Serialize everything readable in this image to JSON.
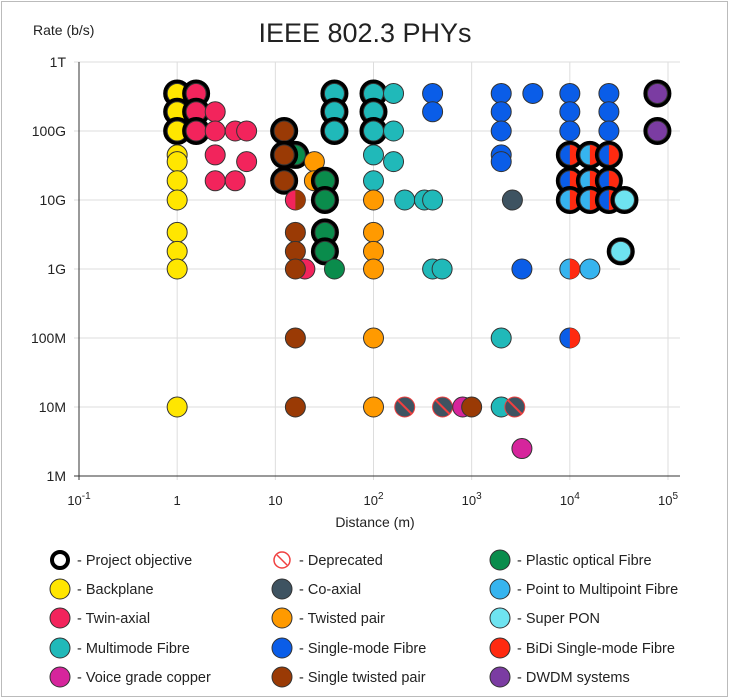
{
  "chart_data": {
    "type": "scatter",
    "title": "IEEE 802.3 PHYs",
    "xlabel": "Distance (m)",
    "ylabel": "Rate (b/s)",
    "xscale": "log",
    "yscale": "log",
    "xlim": [
      0.1,
      100000
    ],
    "ylim": [
      1000000,
      1000000000000
    ],
    "grid": true,
    "x_ticks": [
      {
        "value": 0.1,
        "base": "10",
        "exp": "-1"
      },
      {
        "value": 1,
        "base": "1",
        "exp": ""
      },
      {
        "value": 10,
        "base": "10",
        "exp": ""
      },
      {
        "value": 100,
        "base": "10",
        "exp": "2"
      },
      {
        "value": 1000,
        "base": "10",
        "exp": "3"
      },
      {
        "value": 10000,
        "base": "10",
        "exp": "4"
      },
      {
        "value": 100000,
        "base": "10",
        "exp": "5"
      }
    ],
    "y_ticks": [
      {
        "value": 1000000000000.0,
        "label": "1T"
      },
      {
        "value": 100000000000.0,
        "label": "100G"
      },
      {
        "value": 10000000000.0,
        "label": "10G"
      },
      {
        "value": 1000000000.0,
        "label": "1G"
      },
      {
        "value": 100000000.0,
        "label": "100M"
      },
      {
        "value": 10000000.0,
        "label": "10M"
      },
      {
        "value": 1000000.0,
        "label": "1M"
      }
    ],
    "legend_placement": "bottom",
    "legend": [
      {
        "key": "objective",
        "label": "- Project objective"
      },
      {
        "key": "backplane",
        "label": " - Backplane"
      },
      {
        "key": "twinax",
        "label": "- Twin-axial"
      },
      {
        "key": "mmf",
        "label": "- Multimode Fibre"
      },
      {
        "key": "voice",
        "label": "- Voice grade copper"
      },
      {
        "key": "deprecated",
        "label": "- Deprecated"
      },
      {
        "key": "coax",
        "label": "- Co-axial"
      },
      {
        "key": "tp",
        "label": "- Twisted pair"
      },
      {
        "key": "smf",
        "label": "- Single-mode Fibre"
      },
      {
        "key": "stp",
        "label": "- Single twisted pair"
      },
      {
        "key": "pof",
        "label": "- Plastic optical Fibre"
      },
      {
        "key": "p2mp",
        "label": "- Point to Multipoint Fibre"
      },
      {
        "key": "superpon",
        "label": "- Super PON"
      },
      {
        "key": "bidi",
        "label": "- BiDi Single-mode Fibre"
      },
      {
        "key": "dwdm",
        "label": "- DWDM systems"
      }
    ],
    "colors": {
      "backplane": "#ffe600",
      "twinax": "#f2245c",
      "mmf": "#20b9b9",
      "voice": "#d6259c",
      "coax": "#3e5361",
      "tp": "#ff9a00",
      "smf": "#0a5de8",
      "stp": "#9a3a05",
      "pof": "#0a8c4c",
      "p2mp": "#36b4ef",
      "superpon": "#6ee3f0",
      "bidi": "#ff2a10",
      "dwdm": "#7b3ca2"
    },
    "points": [
      {
        "d": 1,
        "r": 350000000000.0,
        "t": "backplane",
        "obj": true
      },
      {
        "d": 1,
        "r": 190000000000.0,
        "t": "backplane",
        "obj": true
      },
      {
        "d": 1,
        "r": 100000000000.0,
        "t": "backplane",
        "obj": true
      },
      {
        "d": 1,
        "r": 45000000000.0,
        "t": "backplane"
      },
      {
        "d": 1,
        "r": 36000000000.0,
        "t": "backplane"
      },
      {
        "d": 1,
        "r": 19000000000.0,
        "t": "backplane"
      },
      {
        "d": 1,
        "r": 10000000000.0,
        "t": "backplane"
      },
      {
        "d": 1,
        "r": 3400000000.0,
        "t": "backplane"
      },
      {
        "d": 1,
        "r": 1800000000.0,
        "t": "backplane"
      },
      {
        "d": 1,
        "r": 1000000000.0,
        "t": "backplane"
      },
      {
        "d": 1,
        "r": 10000000.0,
        "t": "backplane"
      },
      {
        "d": 1.56,
        "r": 350000000000.0,
        "t": "twinax",
        "obj": true
      },
      {
        "d": 1.56,
        "r": 190000000000.0,
        "t": "twinax",
        "obj": true
      },
      {
        "d": 1.56,
        "r": 100000000000.0,
        "t": "twinax",
        "obj": true
      },
      {
        "d": 2.44,
        "r": 190000000000.0,
        "t": "twinax"
      },
      {
        "d": 2.44,
        "r": 100000000000.0,
        "t": "twinax"
      },
      {
        "d": 2.44,
        "r": 45000000000.0,
        "t": "twinax"
      },
      {
        "d": 2.44,
        "r": 19000000000.0,
        "t": "twinax"
      },
      {
        "d": 3.9,
        "r": 100000000000.0,
        "t": "twinax"
      },
      {
        "d": 3.9,
        "r": 19000000000.0,
        "t": "twinax"
      },
      {
        "d": 5.1,
        "r": 100000000000.0,
        "t": "twinax"
      },
      {
        "d": 5.1,
        "r": 36000000000.0,
        "t": "twinax"
      },
      {
        "d": 20,
        "r": 1000000000.0,
        "t": "twinax"
      },
      {
        "d": 16,
        "r": 45000000000.0,
        "t": "pof",
        "obj": true
      },
      {
        "d": 12.3,
        "r": 100000000000.0,
        "t": "stp",
        "obj": true
      },
      {
        "d": 12.3,
        "r": 45000000000.0,
        "t": "stp",
        "obj": true
      },
      {
        "d": 12.3,
        "r": 19000000000.0,
        "t": "stp",
        "obj": true
      },
      {
        "d": 16,
        "r": 10000000000.0,
        "t": "twinax",
        "t2": "stp"
      },
      {
        "d": 16,
        "r": 3400000000.0,
        "t": "stp"
      },
      {
        "d": 16,
        "r": 1800000000.0,
        "t": "stp"
      },
      {
        "d": 16,
        "r": 1000000000.0,
        "t": "stp"
      },
      {
        "d": 16,
        "r": 100000000.0,
        "t": "stp"
      },
      {
        "d": 16,
        "r": 10000000.0,
        "t": "stp"
      },
      {
        "d": 25,
        "r": 36000000000.0,
        "t": "tp"
      },
      {
        "d": 25,
        "r": 19000000000.0,
        "t": "tp"
      },
      {
        "d": 32,
        "r": 19000000000.0,
        "t": "pof",
        "obj": true
      },
      {
        "d": 32,
        "r": 10000000000.0,
        "t": "pof",
        "obj": true
      },
      {
        "d": 32,
        "r": 3400000000.0,
        "t": "pof",
        "obj": true
      },
      {
        "d": 32,
        "r": 1800000000.0,
        "t": "pof",
        "obj": true
      },
      {
        "d": 40,
        "r": 1000000000.0,
        "t": "pof"
      },
      {
        "d": 40,
        "r": 350000000000.0,
        "t": "mmf",
        "obj": true
      },
      {
        "d": 40,
        "r": 190000000000.0,
        "t": "mmf",
        "obj": true
      },
      {
        "d": 40,
        "r": 100000000000.0,
        "t": "mmf",
        "obj": true
      },
      {
        "d": 100,
        "r": 350000000000.0,
        "t": "mmf",
        "obj": true
      },
      {
        "d": 100,
        "r": 190000000000.0,
        "t": "mmf",
        "obj": true
      },
      {
        "d": 100,
        "r": 100000000000.0,
        "t": "mmf",
        "obj": true
      },
      {
        "d": 100,
        "r": 45000000000.0,
        "t": "mmf"
      },
      {
        "d": 100,
        "r": 19000000000.0,
        "t": "mmf"
      },
      {
        "d": 100,
        "r": 10000000000.0,
        "t": "tp"
      },
      {
        "d": 100,
        "r": 3400000000.0,
        "t": "tp"
      },
      {
        "d": 100,
        "r": 1800000000.0,
        "t": "tp"
      },
      {
        "d": 100,
        "r": 1000000000.0,
        "t": "tp"
      },
      {
        "d": 100,
        "r": 100000000.0,
        "t": "tp"
      },
      {
        "d": 100,
        "r": 10000000.0,
        "t": "tp"
      },
      {
        "d": 160,
        "r": 350000000000.0,
        "t": "mmf"
      },
      {
        "d": 160,
        "r": 100000000000.0,
        "t": "mmf"
      },
      {
        "d": 160,
        "r": 36000000000.0,
        "t": "mmf"
      },
      {
        "d": 208,
        "r": 10000000000.0,
        "t": "mmf"
      },
      {
        "d": 330,
        "r": 10000000000.0,
        "t": "mmf"
      },
      {
        "d": 400,
        "r": 10000000000.0,
        "t": "mmf"
      },
      {
        "d": 400,
        "r": 1000000000.0,
        "t": "mmf"
      },
      {
        "d": 500,
        "r": 1000000000.0,
        "t": "mmf"
      },
      {
        "d": 2000,
        "r": 100000000.0,
        "t": "mmf"
      },
      {
        "d": 2000,
        "r": 10000000.0,
        "t": "mmf"
      },
      {
        "d": 208,
        "r": 10000000.0,
        "t": "coax",
        "dep": true
      },
      {
        "d": 505,
        "r": 10000000.0,
        "t": "coax",
        "dep": true
      },
      {
        "d": 2750,
        "r": 10000000.0,
        "t": "coax",
        "dep": true
      },
      {
        "d": 810,
        "r": 10000000.0,
        "t": "voice"
      },
      {
        "d": 1000,
        "r": 10000000.0,
        "t": "stp"
      },
      {
        "d": 3250,
        "r": 2500000.0,
        "t": "voice"
      },
      {
        "d": 2600,
        "r": 10000000000.0,
        "t": "coax"
      },
      {
        "d": 400,
        "r": 350000000000.0,
        "t": "smf"
      },
      {
        "d": 400,
        "r": 190000000000.0,
        "t": "smf"
      },
      {
        "d": 2000,
        "r": 350000000000.0,
        "t": "smf"
      },
      {
        "d": 2000,
        "r": 190000000000.0,
        "t": "smf"
      },
      {
        "d": 2000,
        "r": 100000000000.0,
        "t": "smf"
      },
      {
        "d": 2000,
        "r": 45000000000.0,
        "t": "smf"
      },
      {
        "d": 2000,
        "r": 36000000000.0,
        "t": "smf"
      },
      {
        "d": 4200,
        "r": 350000000000.0,
        "t": "smf"
      },
      {
        "d": 10000,
        "r": 350000000000.0,
        "t": "smf"
      },
      {
        "d": 10000,
        "r": 190000000000.0,
        "t": "smf"
      },
      {
        "d": 10000,
        "r": 100000000000.0,
        "t": "smf"
      },
      {
        "d": 25000,
        "r": 350000000000.0,
        "t": "smf"
      },
      {
        "d": 25000,
        "r": 190000000000.0,
        "t": "smf"
      },
      {
        "d": 25000,
        "r": 100000000000.0,
        "t": "smf"
      },
      {
        "d": 3250,
        "r": 1000000000.0,
        "t": "smf"
      },
      {
        "d": 10000,
        "r": 100000000.0,
        "t": "smf",
        "t2": "bidi"
      },
      {
        "d": 10000,
        "r": 10000000000.0,
        "t": "p2mp"
      },
      {
        "d": 10000,
        "r": 1000000000.0,
        "t": "p2mp",
        "t2": "bidi"
      },
      {
        "d": 16000,
        "r": 1000000000.0,
        "t": "p2mp"
      },
      {
        "d": 10000,
        "r": 45000000000.0,
        "t": "smf",
        "t2": "bidi",
        "obj": true
      },
      {
        "d": 16000,
        "r": 45000000000.0,
        "t": "p2mp",
        "t2": "bidi",
        "obj": true
      },
      {
        "d": 25000,
        "r": 45000000000.0,
        "t": "smf",
        "t2": "bidi",
        "obj": true
      },
      {
        "d": 10000,
        "r": 19000000000.0,
        "t": "smf",
        "t2": "bidi",
        "obj": true
      },
      {
        "d": 16000,
        "r": 19000000000.0,
        "t": "p2mp",
        "t2": "bidi",
        "obj": true
      },
      {
        "d": 25000,
        "r": 19000000000.0,
        "t": "smf",
        "t2": "bidi",
        "obj": true
      },
      {
        "d": 10000,
        "r": 10000000000.0,
        "t": "p2mp",
        "t2": "bidi",
        "obj": true
      },
      {
        "d": 16000,
        "r": 10000000000.0,
        "t": "p2mp",
        "t2": "bidi",
        "obj": true
      },
      {
        "d": 25000,
        "r": 10000000000.0,
        "t": "smf",
        "t2": "bidi",
        "obj": true
      },
      {
        "d": 36000,
        "r": 10000000000.0,
        "t": "superpon",
        "obj": true
      },
      {
        "d": 33000,
        "r": 1800000000.0,
        "t": "superpon",
        "obj": true
      },
      {
        "d": 78000,
        "r": 350000000000.0,
        "t": "dwdm",
        "obj": true
      },
      {
        "d": 78000,
        "r": 100000000000.0,
        "t": "dwdm",
        "obj": true
      }
    ]
  }
}
